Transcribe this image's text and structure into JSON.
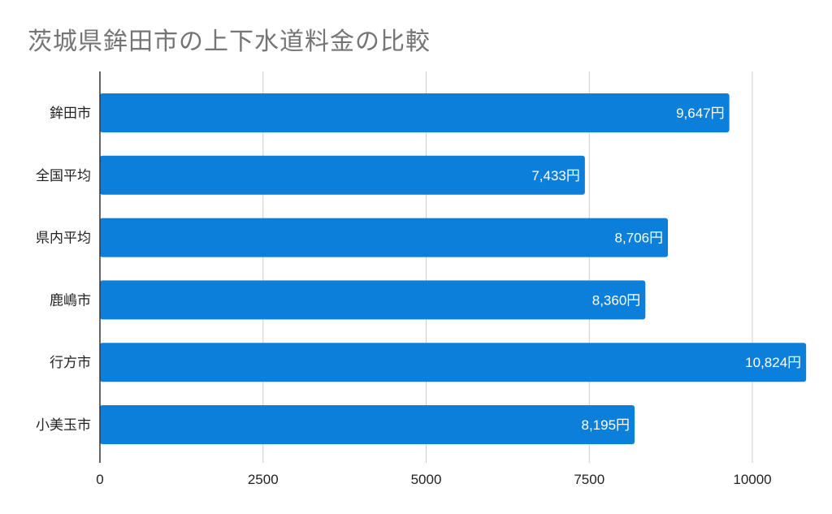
{
  "chart_data": {
    "type": "bar",
    "orientation": "horizontal",
    "title": "茨城県鉾田市の上下水道料金の比較",
    "categories": [
      "鉾田市",
      "全国平均",
      "県内平均",
      "鹿嶋市",
      "行方市",
      "小美玉市"
    ],
    "values": [
      9647,
      7433,
      8706,
      8360,
      10824,
      8195
    ],
    "data_labels": [
      "9,647円",
      "7,433円",
      "8,706円",
      "8,360円",
      "10,824円",
      "8,195円"
    ],
    "x_ticks": [
      "0",
      "2500",
      "5000",
      "7500",
      "10000"
    ],
    "xlim": [
      0,
      11000
    ],
    "grid": true,
    "bar_color": "#0b7fd9",
    "grid_color": "#cccccc"
  }
}
